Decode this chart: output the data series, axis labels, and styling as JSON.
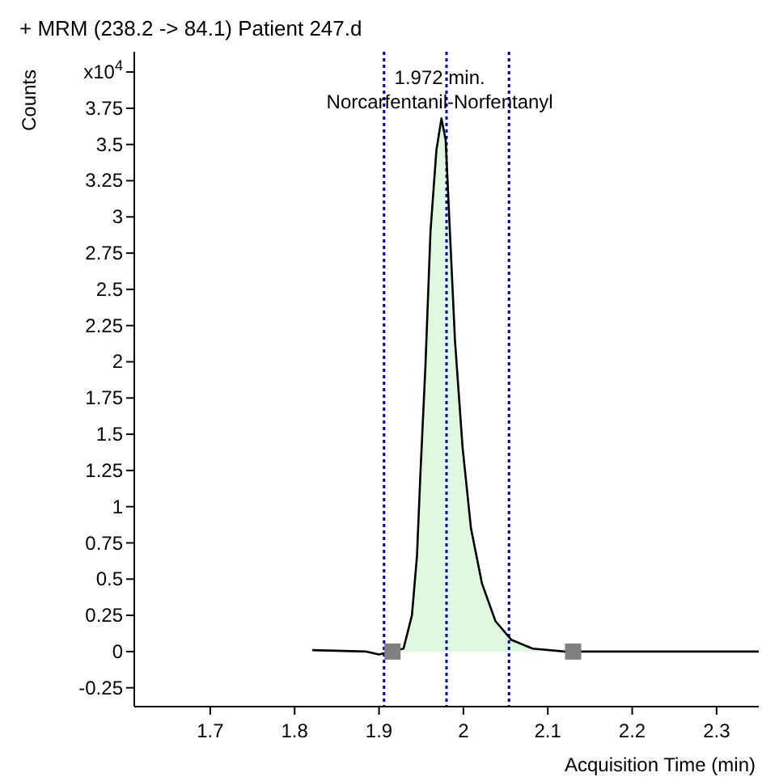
{
  "chart_data": {
    "type": "line",
    "title": "+ MRM (238.2 -> 84.1) Patient 247.d",
    "xlabel": "Acquisition Time (min)",
    "ylabel": "Counts",
    "xlim": [
      1.61,
      2.35
    ],
    "xticks": [
      1.7,
      1.8,
      1.9,
      2,
      2.1,
      2.2,
      2.3
    ],
    "ylim": [
      -0.38,
      4.14
    ],
    "yticks": [
      -0.25,
      0,
      0.25,
      0.5,
      0.75,
      1,
      1.25,
      1.5,
      1.75,
      2,
      2.25,
      2.5,
      2.75,
      3,
      3.25,
      3.5,
      3.75,
      {
        "value": 4,
        "label": "x10$^{4}$"
      }
    ],
    "grid": false,
    "series": [
      {
        "type": "area",
        "color": "#e0f8e0",
        "x": [
          1.929,
          1.939,
          1.945,
          1.949,
          1.955,
          1.961,
          1.968,
          1.974,
          1.979,
          1.984,
          1.99,
          1.999,
          2.009,
          2.022,
          2.038,
          2.057,
          2.082,
          2.09
        ],
        "values": [
          0.02,
          0.25,
          0.66,
          1.22,
          1.97,
          2.9,
          3.46,
          3.68,
          3.53,
          2.9,
          2.15,
          1.41,
          0.85,
          0.47,
          0.21,
          0.08,
          0.02,
          0.01
        ]
      },
      {
        "color": "#000000",
        "marker": "none",
        "x": [
          1.821,
          1.885,
          1.9,
          1.929,
          1.939,
          1.945,
          1.949,
          1.955,
          1.961,
          1.968,
          1.974,
          1.979,
          1.984,
          1.99,
          1.999,
          2.009,
          2.022,
          2.038,
          2.057,
          2.082,
          2.12,
          2.35
        ],
        "values": [
          0.01,
          0.0,
          -0.02,
          0.02,
          0.25,
          0.66,
          1.22,
          1.97,
          2.9,
          3.46,
          3.68,
          3.53,
          2.9,
          2.15,
          1.41,
          0.85,
          0.47,
          0.21,
          0.08,
          0.02,
          0.0,
          0.0
        ]
      },
      {
        "type": "scatter",
        "color": "#808080",
        "marker": "square",
        "x": [
          1.916,
          2.13
        ],
        "values": [
          0,
          0
        ]
      }
    ],
    "ref_lines": [
      {
        "axis": "x",
        "value": 1.906,
        "color": "#00008b",
        "line_style": "dotted"
      },
      {
        "axis": "x",
        "value": 1.98,
        "color": "#00008b",
        "line_style": "dotted"
      },
      {
        "axis": "x",
        "value": 2.054,
        "color": "#00008b",
        "line_style": "dotted"
      }
    ],
    "annotations": [
      {
        "text": "1.972 min.",
        "x": 1.972,
        "y": 3.68
      },
      {
        "text": "Norcarfentanil-Norfentanyl",
        "x": 1.972,
        "y": 3.68
      }
    ]
  }
}
